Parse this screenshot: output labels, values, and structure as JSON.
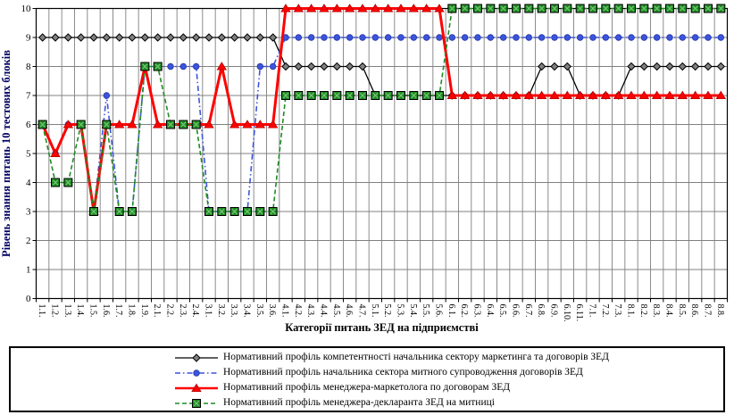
{
  "chart_data": {
    "type": "line",
    "title": "",
    "xlabel": "Категорії питань ЗЕД на підприємстві",
    "ylabel": "Рівень знання питань 10 тестових блоків",
    "ylim": [
      0,
      10
    ],
    "y_ticks": [
      0,
      1,
      2,
      3,
      4,
      5,
      6,
      7,
      8,
      9,
      10
    ],
    "grid": "both",
    "legend_position": "bottom-box",
    "axis_title_colors": {
      "x": "#000000",
      "y": "#000060"
    },
    "grid_color": "#808080",
    "categories": [
      "1.1.",
      "1.2.",
      "1.3.",
      "1.4.",
      "1.5.",
      "1.6.",
      "1.7.",
      "1.8.",
      "1.9.",
      "2.1.",
      "2.2.",
      "2.3.",
      "2.4.",
      "3.1.",
      "3.2.",
      "3.3.",
      "3.4.",
      "3.5.",
      "3.6.",
      "4.1.",
      "4.2.",
      "4.3.",
      "4.4.",
      "4.5.",
      "4.6.",
      "4.7.",
      "5.1.",
      "5.2.",
      "5.3.",
      "5.4.",
      "5.5.",
      "5.6.",
      "6.1.",
      "6.2.",
      "6.3.",
      "6.4.",
      "6.5.",
      "6.6.",
      "6.7.",
      "6.8.",
      "6.9.",
      "6.10.",
      "6.11.",
      "7.1.",
      "7.2.",
      "7.3.",
      "8.1.",
      "8.2.",
      "8.3.",
      "8.4.",
      "8.5.",
      "8.6.",
      "8.7.",
      "8.8."
    ],
    "series": [
      {
        "name": "Нормативний профіль компетентності начальника сектору маркетинга та договорів ЗЕД",
        "marker": "diamond",
        "line_style": "solid",
        "color": "#000000",
        "marker_fill": "#808080",
        "marker_stroke": "#000000",
        "values": [
          9,
          9,
          9,
          9,
          9,
          9,
          9,
          9,
          9,
          9,
          9,
          9,
          9,
          9,
          9,
          9,
          9,
          9,
          9,
          8,
          8,
          8,
          8,
          8,
          8,
          8,
          7,
          7,
          7,
          7,
          7,
          7,
          7,
          7,
          7,
          7,
          7,
          7,
          7,
          8,
          8,
          8,
          7,
          7,
          7,
          7,
          8,
          8,
          8,
          8,
          8,
          8,
          8,
          8
        ]
      },
      {
        "name": "Нормативний профіль начальника сектора митного супроводження договорів ЗЕД",
        "marker": "circle",
        "line_style": "dash-dot",
        "color": "#3D55DC",
        "marker_fill": "#3D55DC",
        "marker_stroke": "#2236A8",
        "values": [
          6,
          5,
          6,
          6,
          3,
          7,
          3,
          3,
          8,
          8,
          8,
          8,
          8,
          3,
          3,
          3,
          3,
          8,
          8,
          9,
          9,
          9,
          9,
          9,
          9,
          9,
          9,
          9,
          9,
          9,
          9,
          9,
          9,
          9,
          9,
          9,
          9,
          9,
          9,
          9,
          9,
          9,
          9,
          9,
          9,
          9,
          9,
          9,
          9,
          9,
          9,
          9,
          9,
          9
        ]
      },
      {
        "name": "Нормативний профіль менеджера-маркетолога по договорам ЗЕД",
        "marker": "triangle",
        "line_style": "solid-thick",
        "color": "#FF0000",
        "marker_fill": "#FF0000",
        "marker_stroke": "#B30000",
        "values": [
          6,
          5,
          6,
          6,
          3,
          6,
          6,
          6,
          8,
          6,
          6,
          6,
          6,
          6,
          8,
          6,
          6,
          6,
          6,
          10,
          10,
          10,
          10,
          10,
          10,
          10,
          10,
          10,
          10,
          10,
          10,
          10,
          7,
          7,
          7,
          7,
          7,
          7,
          7,
          7,
          7,
          7,
          7,
          7,
          7,
          7,
          7,
          7,
          7,
          7,
          7,
          7,
          7,
          7
        ]
      },
      {
        "name": "Нормативний профіль менеджера-декларанта ЗЕД на митниці",
        "marker": "square",
        "line_style": "dashed",
        "color": "#1F8B23",
        "marker_fill": "#1F8B23",
        "marker_stroke": "#000000",
        "marker_inner": "#74C976",
        "values": [
          6,
          4,
          4,
          6,
          3,
          6,
          3,
          3,
          8,
          8,
          6,
          6,
          6,
          3,
          3,
          3,
          3,
          3,
          3,
          7,
          7,
          7,
          7,
          7,
          7,
          7,
          7,
          7,
          7,
          7,
          7,
          7,
          10,
          10,
          10,
          10,
          10,
          10,
          10,
          10,
          10,
          10,
          10,
          10,
          10,
          10,
          10,
          10,
          10,
          10,
          10,
          10,
          10,
          10
        ]
      }
    ]
  }
}
